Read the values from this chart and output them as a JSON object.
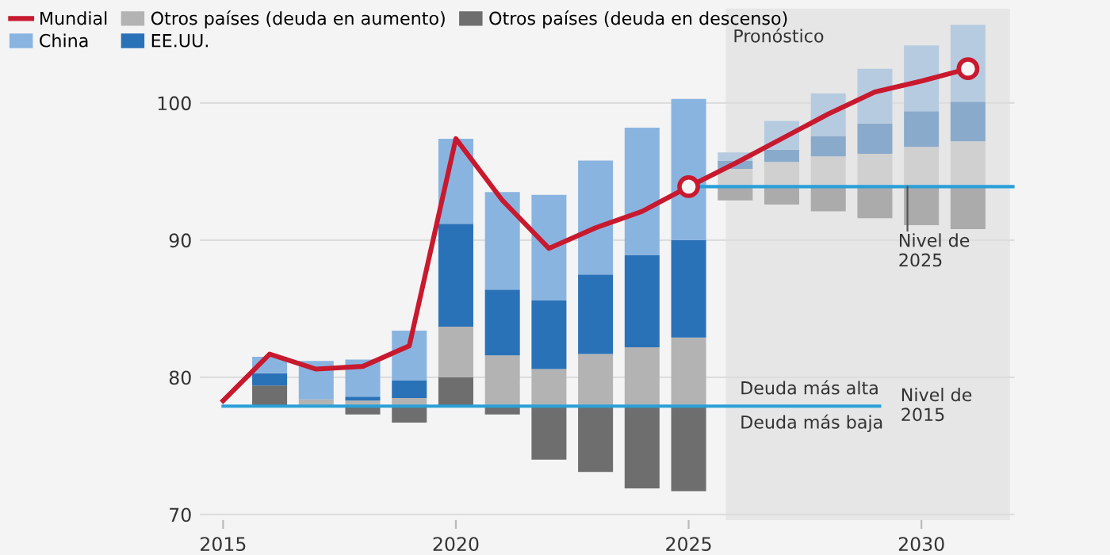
{
  "chart_data": {
    "type": "bar",
    "x": [
      2016,
      2017,
      2018,
      2019,
      2020,
      2021,
      2022,
      2023,
      2024,
      2025,
      2026,
      2027,
      2028,
      2029,
      2030,
      2031
    ],
    "series": [
      {
        "name": "Otros países (deuda en descenso)",
        "color": "#6e6e6e",
        "colors": [
          "#6e6e6e",
          "#6e6e6e",
          "#6e6e6e",
          "#6e6e6e",
          "#6e6e6e",
          "#6e6e6e",
          "#6e6e6e",
          "#6e6e6e",
          "#6e6e6e",
          "#6e6e6e",
          "#ababab",
          "#ababab",
          "#ababab",
          "#ababab",
          "#ababab",
          "#ababab"
        ],
        "base": [
          77.9,
          null,
          77.9,
          77.9,
          77.9,
          77.9,
          77.9,
          77.9,
          77.9,
          77.9,
          93.9,
          93.9,
          93.9,
          93.9,
          93.9,
          93.9
        ],
        "values": [
          1.5,
          null,
          -0.6,
          -1.2,
          2.1,
          -0.6,
          -3.9,
          -4.8,
          -6.0,
          -6.2,
          -1.0,
          -1.3,
          -1.8,
          -2.3,
          -2.8,
          -3.1
        ]
      },
      {
        "name": "Otros países (deuda en aumento)",
        "color": "#b3b3b3",
        "colors": [
          "#b3b3b3",
          "#b3b3b3",
          "#b3b3b3",
          "#b3b3b3",
          "#b3b3b3",
          "#b3b3b3",
          "#b3b3b3",
          "#b3b3b3",
          "#b3b3b3",
          "#b3b3b3",
          "#d0d0d0",
          "#d0d0d0",
          "#d0d0d0",
          "#d0d0d0",
          "#d0d0d0",
          "#d0d0d0"
        ],
        "base": [
          null,
          77.9,
          77.9,
          77.9,
          80.0,
          77.9,
          77.9,
          77.9,
          77.9,
          77.9,
          93.9,
          93.9,
          93.9,
          93.9,
          93.9,
          93.9
        ],
        "values": [
          null,
          0.5,
          0.4,
          0.6,
          3.7,
          3.7,
          2.7,
          3.8,
          4.3,
          5.0,
          1.3,
          1.8,
          2.2,
          2.4,
          2.9,
          3.3
        ]
      },
      {
        "name": "EE.UU.",
        "color": "#2a72b8",
        "colors": [
          "#2a72b8",
          "#2a72b8",
          "#2a72b8",
          "#2a72b8",
          "#2a72b8",
          "#2a72b8",
          "#2a72b8",
          "#2a72b8",
          "#2a72b8",
          "#2a72b8",
          "#8aaacb",
          "#8aaacb",
          "#8aaacb",
          "#8aaacb",
          "#8aaacb",
          "#8aaacb"
        ],
        "base": [
          79.4,
          null,
          78.3,
          78.5,
          83.7,
          81.6,
          80.6,
          81.7,
          82.2,
          82.9,
          95.2,
          95.7,
          96.1,
          96.3,
          96.8,
          97.2
        ],
        "values": [
          0.9,
          null,
          0.3,
          1.3,
          7.5,
          4.8,
          5.0,
          5.8,
          6.7,
          7.1,
          0.6,
          0.9,
          1.5,
          2.2,
          2.6,
          2.9
        ]
      },
      {
        "name": "China",
        "color": "#8ab4e0",
        "colors": [
          "#8ab4e0",
          "#8ab4e0",
          "#8ab4e0",
          "#8ab4e0",
          "#8ab4e0",
          "#8ab4e0",
          "#8ab4e0",
          "#8ab4e0",
          "#8ab4e0",
          "#8ab4e0",
          "#b6cbe0",
          "#b6cbe0",
          "#b6cbe0",
          "#b6cbe0",
          "#b6cbe0",
          "#b6cbe0"
        ],
        "base": [
          80.3,
          78.4,
          78.6,
          79.8,
          91.2,
          86.4,
          85.6,
          87.5,
          88.9,
          90.0,
          95.8,
          96.6,
          97.6,
          98.5,
          99.4,
          100.1
        ],
        "values": [
          1.2,
          2.8,
          2.7,
          3.6,
          6.2,
          7.1,
          7.7,
          8.3,
          9.3,
          10.3,
          0.6,
          2.1,
          3.1,
          4.0,
          4.8,
          5.6
        ]
      },
      {
        "type": "line",
        "color": "#2a9fd8",
        "x": [
          2015,
          2029.1
        ],
        "values": [
          77.9,
          77.9
        ]
      },
      {
        "type": "line",
        "color": "#2a9fd8",
        "x": [
          2025,
          2032
        ],
        "values": [
          93.9,
          93.9
        ]
      },
      {
        "name": "Mundial",
        "type": "line",
        "color": "#c8192e",
        "x": [
          2015,
          2016,
          2017,
          2018,
          2019,
          2020,
          2021,
          2022,
          2023,
          2024,
          2025,
          2026,
          2027,
          2028,
          2029,
          2030,
          2031
        ],
        "values": [
          78.3,
          81.7,
          80.6,
          80.8,
          82.3,
          97.4,
          92.9,
          89.4,
          90.9,
          92.1,
          93.9,
          95.6,
          97.4,
          99.2,
          100.8,
          101.6,
          102.5
        ]
      },
      {
        "type": "scatter",
        "color": "#c8192e",
        "marker": "circle",
        "x": [
          2025,
          2031
        ],
        "values": [
          93.9,
          102.5
        ]
      }
    ],
    "xlim": [
      2014.5,
      2032
    ],
    "ylim": [
      69.6,
      106.9
    ],
    "xticks": [
      2015,
      2020,
      2025,
      2030
    ],
    "yticks": [
      70,
      80,
      90,
      100
    ],
    "grid": "y",
    "legend": "top left",
    "bands": [
      {
        "axis": "x",
        "from": 2025.8,
        "to": 2031.9,
        "label": "Pronóstico",
        "color": "#e6e6e6"
      }
    ],
    "annotations": [
      {
        "text": "Deuda más alta",
        "x": 2026.1,
        "y": 77.9
      },
      {
        "text": "Deuda más baja",
        "x": 2026.1,
        "y": 77.9
      },
      {
        "text": "Nivel de\n2015",
        "x": 2029.1,
        "y": 77.9
      },
      {
        "text": "Nivel de\n2025",
        "x": 2029.7,
        "y": 93.9
      }
    ]
  }
}
